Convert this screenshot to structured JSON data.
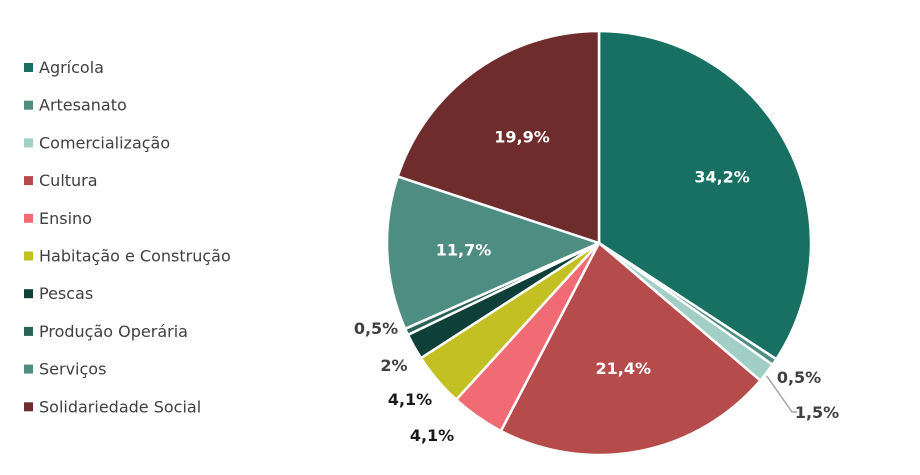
{
  "chart_data": {
    "type": "pie",
    "title": "",
    "legend_position": "left",
    "categories": [
      "Agrícola",
      "Artesanato",
      "Comercialização",
      "Cultura",
      "Ensino",
      "Habitação e Construção",
      "Pescas",
      "Produção Operária",
      "Serviços",
      "Solidariedade Social"
    ],
    "slices": [
      {
        "name": "Agrícola",
        "value": 34.2,
        "label": "34,2%",
        "color": "#177061",
        "label_style": "inside"
      },
      {
        "name": "Serviços",
        "value": 0.5,
        "label": "0,5%",
        "color": "#4e8d82",
        "label_style": "outside"
      },
      {
        "name": "Comercialização",
        "value": 1.5,
        "label": "1,5%",
        "color": "#a1cfc6",
        "label_style": "outside"
      },
      {
        "name": "Cultura",
        "value": 21.4,
        "label": "21,4%",
        "color": "#b54b4b",
        "label_style": "inside"
      },
      {
        "name": "Ensino",
        "value": 4.1,
        "label": "4,1%",
        "color": "#f06b73",
        "label_style": "outside"
      },
      {
        "name": "Habitação e Construção",
        "value": 4.1,
        "label": "4,1%",
        "color": "#c2c022",
        "label_style": "outside"
      },
      {
        "name": "Pescas",
        "value": 2.0,
        "label": "2%",
        "color": "#0e3f38",
        "label_style": "outside"
      },
      {
        "name": "Produção Operária",
        "value": 0.5,
        "label": "0,5%",
        "color": "#2b6357",
        "label_style": "outside"
      },
      {
        "name": "Artesanato",
        "value": 11.7,
        "label": "11,7%",
        "color": "#4e8d82",
        "label_style": "inside"
      },
      {
        "name": "Solidariedade Social",
        "value": 19.9,
        "label": "19,9%",
        "color": "#6e2c2c",
        "label_style": "inside"
      }
    ]
  },
  "legend": {
    "items": [
      {
        "name": "Agrícola",
        "color": "#177061"
      },
      {
        "name": "Artesanato",
        "color": "#4e8d82"
      },
      {
        "name": "Comercialização",
        "color": "#a1cfc6"
      },
      {
        "name": "Cultura",
        "color": "#b54b4b"
      },
      {
        "name": "Ensino",
        "color": "#f06b73"
      },
      {
        "name": "Habitação e Construção",
        "color": "#c2c022"
      },
      {
        "name": "Pescas",
        "color": "#0e3f38"
      },
      {
        "name": "Produção Operária",
        "color": "#2b6357"
      },
      {
        "name": "Serviços",
        "color": "#4e8d82"
      },
      {
        "name": "Solidariedade Social",
        "color": "#6e2c2c"
      }
    ]
  }
}
